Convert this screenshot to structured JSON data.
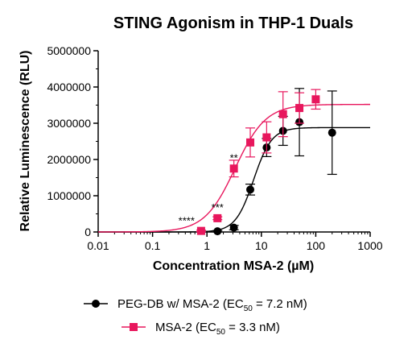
{
  "chart_data": {
    "type": "scatter",
    "title": "STING Agonism in THP-1 Duals",
    "xlabel": "Concentration MSA-2 (µM)",
    "ylabel": "Relative Luminescence (RLU)",
    "x_scale": "log",
    "xlim": [
      0.01,
      1000
    ],
    "ylim": [
      0,
      5000000
    ],
    "x_ticks": [
      "0.01",
      "0.1",
      "1",
      "10",
      "100",
      "1000"
    ],
    "y_ticks": [
      "0",
      "1000000",
      "2000000",
      "3000000",
      "4000000",
      "5000000"
    ],
    "legend_position": "bottom",
    "series": [
      {
        "name_prefix": "PEG-DB w/ MSA-2 (EC",
        "name_sub": "50",
        "name_suffix": " = 7.2 nM)",
        "color": "#000000",
        "marker": "circle",
        "x": [
          1.56,
          3.125,
          6.25,
          12.5,
          25,
          50,
          200
        ],
        "y": [
          20000,
          120000,
          1170000,
          2330000,
          2790000,
          3030000,
          2740000
        ],
        "err": [
          20000,
          60000,
          150000,
          250000,
          400000,
          930000,
          1150000
        ],
        "fit": {
          "bottom": 0,
          "top": 2880000,
          "ec50": 7.2,
          "hill": 2.6
        }
      },
      {
        "name_prefix": "MSA-2 (EC",
        "name_sub": "50",
        "name_suffix": " = 3.3 nM)",
        "color": "#e8175d",
        "marker": "square",
        "x": [
          0.78,
          1.56,
          3.125,
          6.25,
          12.5,
          25,
          50,
          100
        ],
        "y": [
          30000,
          380000,
          1750000,
          2470000,
          2610000,
          3250000,
          3420000,
          3660000
        ],
        "err": [
          20000,
          40000,
          230000,
          400000,
          430000,
          620000,
          420000,
          270000
        ],
        "fit": {
          "bottom": 0,
          "top": 3520000,
          "ec50": 3.3,
          "hill": 1.55
        }
      }
    ],
    "annotations": [
      {
        "text": "****",
        "x": 0.78,
        "y": 30000
      },
      {
        "text": "***",
        "x": 1.56,
        "y": 380000
      },
      {
        "text": "**",
        "x": 3.125,
        "y": 1750000
      }
    ]
  }
}
